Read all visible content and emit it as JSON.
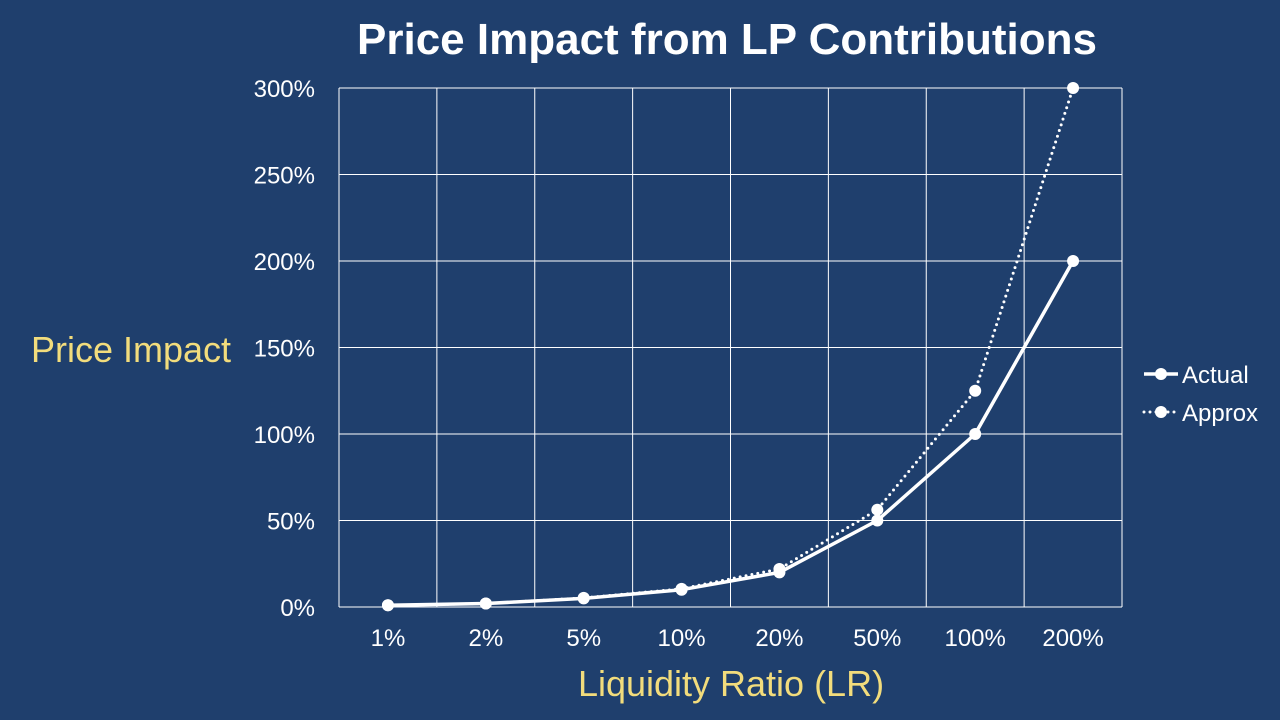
{
  "colors": {
    "background": "#1f3f6d",
    "axis_title": "#f2dc7c",
    "text": "#ffffff",
    "grid": "#ffffff",
    "series": "#ffffff"
  },
  "chart_data": {
    "type": "line",
    "title": "Price Impact from LP Contributions",
    "xlabel": "Liquidity Ratio (LR)",
    "ylabel": "Price Impact",
    "categories": [
      "1%",
      "2%",
      "5%",
      "10%",
      "20%",
      "50%",
      "100%",
      "200%"
    ],
    "ylim": [
      0,
      300
    ],
    "yticks": [
      "0%",
      "50%",
      "100%",
      "150%",
      "200%",
      "250%",
      "300%"
    ],
    "ytick_values": [
      0,
      50,
      100,
      150,
      200,
      250,
      300
    ],
    "grid": true,
    "legend_position": "right",
    "series": [
      {
        "name": "Actual",
        "style": "solid",
        "values": [
          1,
          2,
          5,
          10,
          20,
          50,
          100,
          200
        ]
      },
      {
        "name": "Approx",
        "style": "dotted",
        "values": [
          1,
          2,
          5.25,
          10.5,
          22,
          56.25,
          125,
          300
        ]
      }
    ]
  }
}
